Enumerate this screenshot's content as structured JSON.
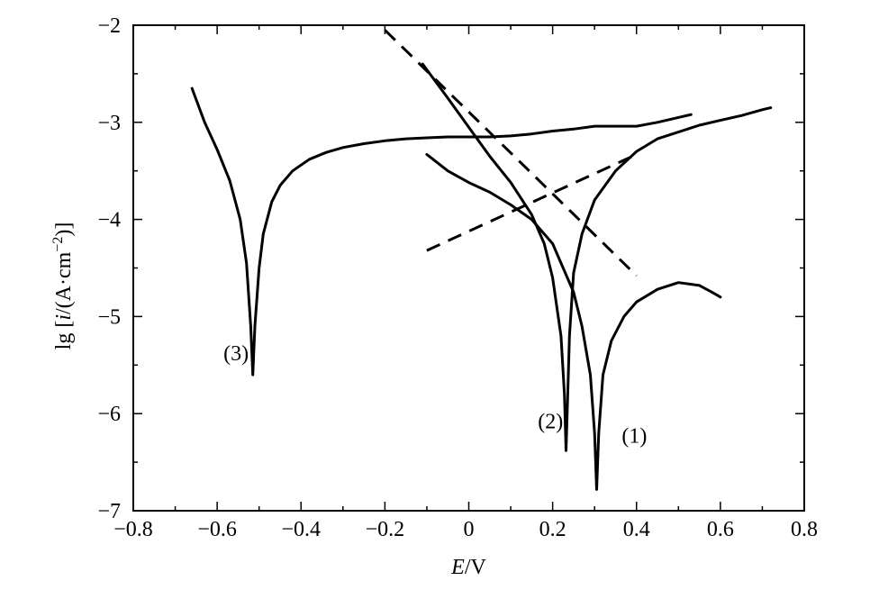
{
  "chart_data": {
    "type": "line",
    "xlabel_italic": "E",
    "xlabel_rest": "/V",
    "ylabel_prefix": "lg [",
    "ylabel_italic": "i",
    "ylabel_mid": "/(A·cm",
    "ylabel_sup": "−2",
    "ylabel_suffix": ")]",
    "xlim": [
      -0.8,
      0.8
    ],
    "ylim": [
      -7,
      -2
    ],
    "xticks": [
      -0.8,
      -0.6,
      -0.4,
      -0.2,
      0,
      0.2,
      0.4,
      0.6,
      0.8
    ],
    "xtick_labels": [
      "−0.8",
      "−0.6",
      "−0.4",
      "−0.2",
      "0",
      "0.2",
      "0.4",
      "0.6",
      "0.8"
    ],
    "yticks": [
      -2,
      -3,
      -4,
      -5,
      -6,
      -7
    ],
    "ytick_labels": [
      "−2",
      "−3",
      "−4",
      "−5",
      "−6",
      "−7"
    ],
    "grid": false,
    "colors": {
      "line": "#000000",
      "background": "#ffffff"
    },
    "series": [
      {
        "label": "(1)",
        "style": "solid",
        "x": [
          -0.1,
          -0.05,
          0.0,
          0.05,
          0.1,
          0.15,
          0.2,
          0.25,
          0.27,
          0.29,
          0.3,
          0.305,
          0.31,
          0.32,
          0.34,
          0.37,
          0.4,
          0.45,
          0.5,
          0.55,
          0.58,
          0.6
        ],
        "y": [
          -3.33,
          -3.5,
          -3.62,
          -3.72,
          -3.85,
          -4.0,
          -4.25,
          -4.75,
          -5.1,
          -5.6,
          -6.2,
          -6.78,
          -6.2,
          -5.6,
          -5.25,
          -5.0,
          -4.85,
          -4.72,
          -4.65,
          -4.68,
          -4.75,
          -4.8
        ]
      },
      {
        "label": "(2)",
        "style": "solid",
        "x": [
          -0.11,
          -0.05,
          0.0,
          0.05,
          0.1,
          0.15,
          0.18,
          0.2,
          0.22,
          0.228,
          0.232,
          0.236,
          0.24,
          0.25,
          0.27,
          0.3,
          0.35,
          0.4,
          0.45,
          0.5,
          0.55,
          0.6,
          0.65,
          0.7,
          0.72
        ],
        "y": [
          -2.4,
          -2.75,
          -3.05,
          -3.35,
          -3.62,
          -3.95,
          -4.25,
          -4.6,
          -5.2,
          -5.8,
          -6.38,
          -5.8,
          -5.2,
          -4.55,
          -4.15,
          -3.8,
          -3.5,
          -3.3,
          -3.17,
          -3.1,
          -3.03,
          -2.98,
          -2.93,
          -2.87,
          -2.85
        ]
      },
      {
        "label": "(3)",
        "style": "solid",
        "x": [
          -0.66,
          -0.63,
          -0.6,
          -0.57,
          -0.545,
          -0.53,
          -0.52,
          -0.515,
          -0.51,
          -0.5,
          -0.49,
          -0.47,
          -0.45,
          -0.42,
          -0.38,
          -0.34,
          -0.3,
          -0.25,
          -0.2,
          -0.15,
          -0.1,
          -0.05,
          0.0,
          0.05,
          0.1,
          0.15,
          0.2,
          0.25,
          0.3,
          0.35,
          0.4,
          0.45,
          0.5,
          0.53
        ],
        "y": [
          -2.65,
          -3.0,
          -3.28,
          -3.6,
          -4.0,
          -4.45,
          -5.1,
          -5.6,
          -5.1,
          -4.5,
          -4.15,
          -3.82,
          -3.65,
          -3.5,
          -3.38,
          -3.31,
          -3.26,
          -3.22,
          -3.19,
          -3.17,
          -3.16,
          -3.15,
          -3.15,
          -3.15,
          -3.14,
          -3.12,
          -3.09,
          -3.07,
          -3.04,
          -3.04,
          -3.04,
          -3.0,
          -2.95,
          -2.92
        ]
      },
      {
        "label": "",
        "style": "dashed",
        "x": [
          -0.2,
          0.4
        ],
        "y": [
          -2.05,
          -4.58
        ]
      },
      {
        "label": "",
        "style": "dashed",
        "x": [
          -0.1,
          0.4
        ],
        "y": [
          -4.32,
          -3.33
        ]
      }
    ],
    "annotations": [
      {
        "text": "(1)",
        "x": 0.395,
        "y": -6.3
      },
      {
        "text": "(2)",
        "x": 0.195,
        "y": -6.15
      },
      {
        "text": "(3)",
        "x": -0.555,
        "y": -5.45
      }
    ]
  }
}
